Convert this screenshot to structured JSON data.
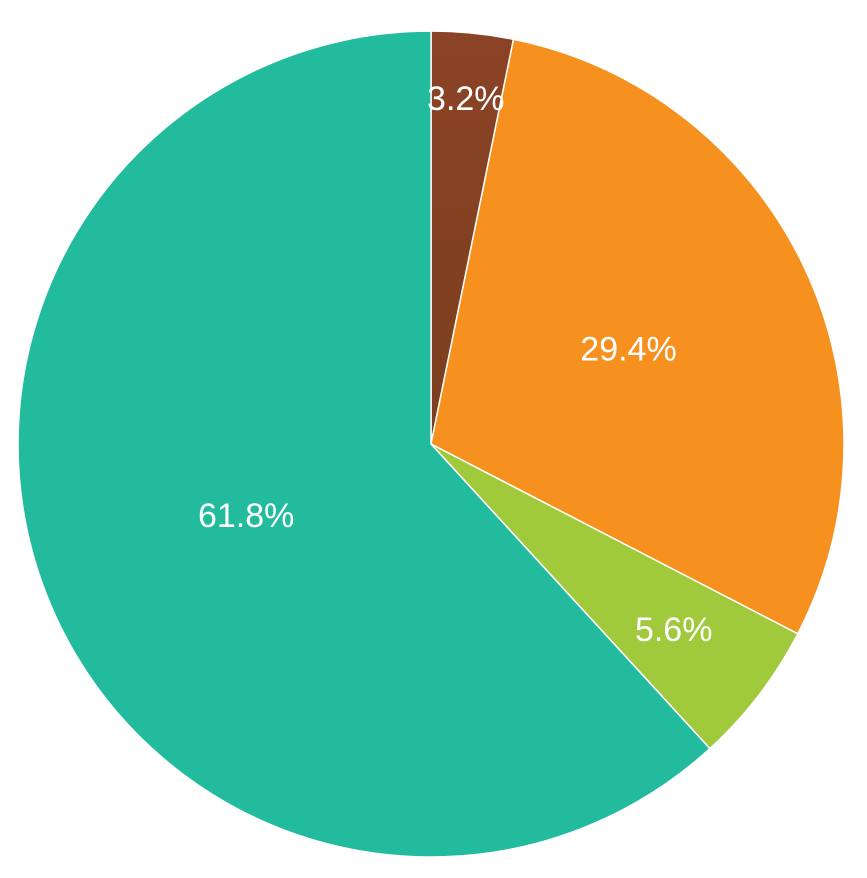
{
  "chart_data": {
    "type": "pie",
    "title": "",
    "legend": "none",
    "start_angle_deg": 0,
    "direction": "clockwise",
    "slices": [
      {
        "value": 3.2,
        "label": "3.2%",
        "color": "#8B4326",
        "color_end": "#7A3E1E"
      },
      {
        "value": 29.4,
        "label": "29.4%",
        "color": "#F6911F"
      },
      {
        "value": 5.6,
        "label": "5.6%",
        "color": "#A0CA3B"
      },
      {
        "value": 61.8,
        "label": "61.8%",
        "color": "#22BB9E"
      }
    ]
  }
}
